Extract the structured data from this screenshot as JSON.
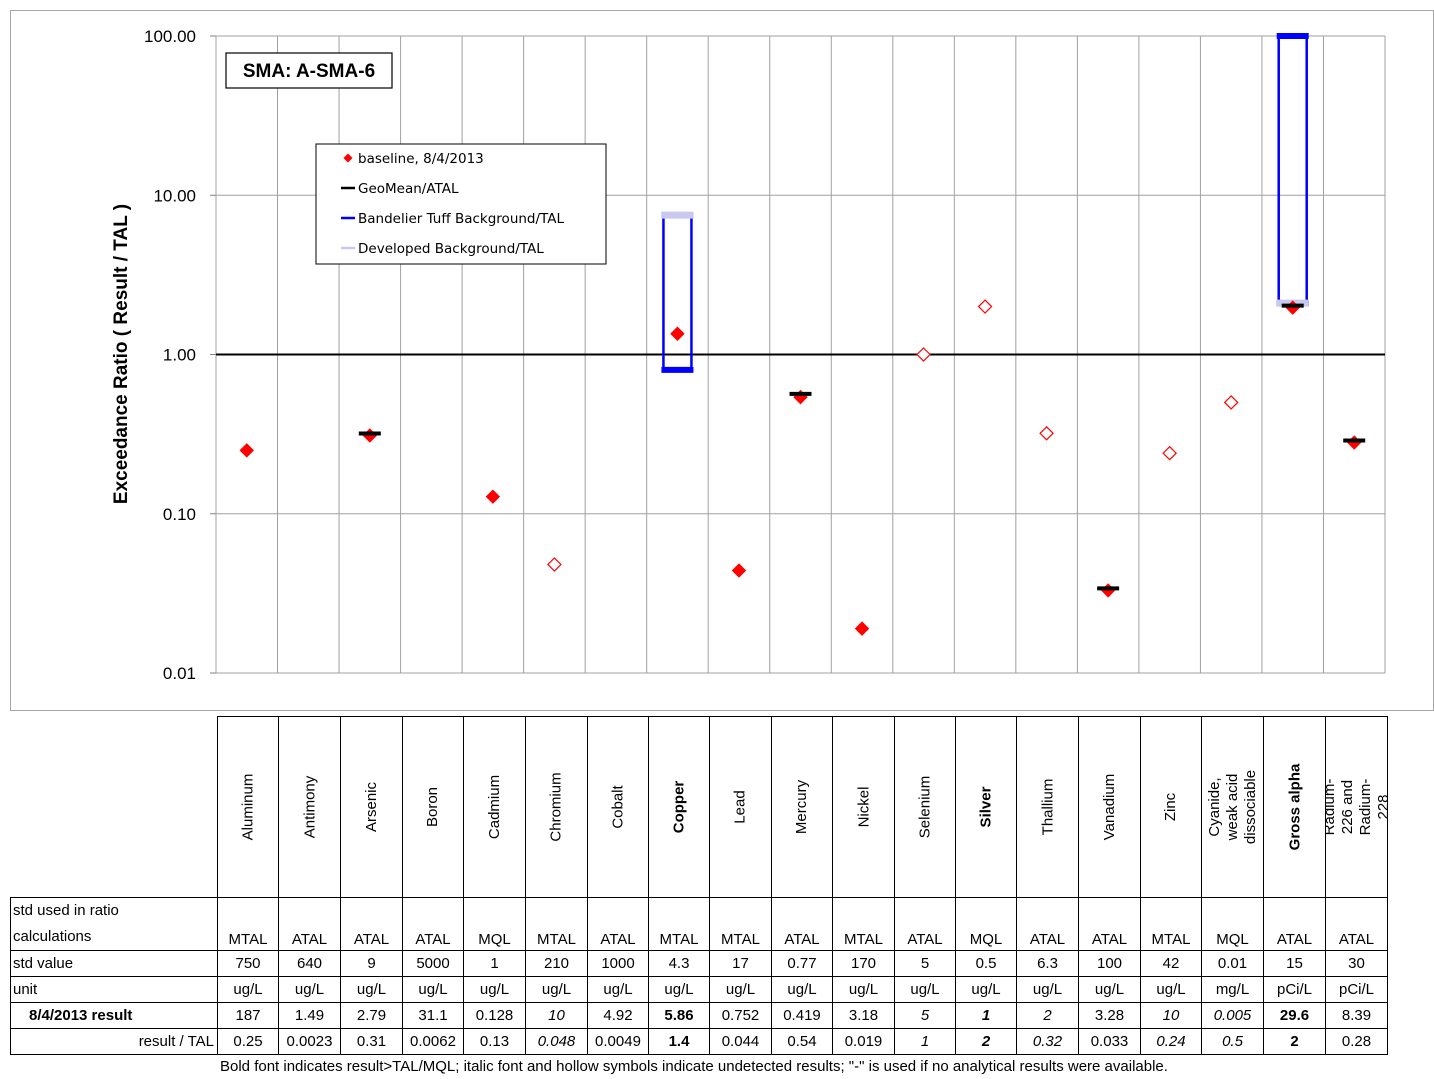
{
  "chart_data": {
    "type": "scatter",
    "yscale": "log",
    "ylim": [
      0.01,
      100
    ],
    "ylabel": "Exceedance Ratio  ( Result / TAL )",
    "yticks": [
      "100.00",
      "10.00",
      "1.00",
      "0.10",
      "0.01"
    ],
    "yticks_values": [
      100,
      10,
      1,
      0.1,
      0.01
    ],
    "reference_line": 1.0,
    "grid": true,
    "title_box": "SMA: A-SMA-6",
    "legend": {
      "placement": "upper-left",
      "entries": [
        {
          "label": "baseline, 8/4/2013",
          "color": "#ff0000",
          "marker": "diamond"
        },
        {
          "label": "GeoMean/ATAL",
          "color": "#000000",
          "marker": "line"
        },
        {
          "label": "Bandelier Tuff Background/TAL",
          "color": "#0000ff",
          "marker": "line"
        },
        {
          "label": "Developed Background/TAL",
          "color": "#c8c8f0",
          "marker": "line"
        }
      ]
    },
    "categories": [
      "Aluminum",
      "Antimony",
      "Arsenic",
      "Boron",
      "Cadmium",
      "Chromium",
      "Cobalt",
      "Copper",
      "Lead",
      "Mercury",
      "Nickel",
      "Selenium",
      "Silver",
      "Thallium",
      "Vanadium",
      "Zinc",
      "Cyanide, weak acid dissociable",
      "Gross alpha",
      "Radium-226 and Radium-228"
    ],
    "series": [
      {
        "name": "baseline, 8/4/2013",
        "values": [
          0.25,
          null,
          0.31,
          null,
          0.128,
          0.048,
          null,
          1.35,
          0.044,
          0.54,
          0.019,
          1.0,
          2.0,
          0.32,
          0.033,
          0.24,
          0.5,
          1.97,
          0.28
        ],
        "detected": [
          true,
          true,
          true,
          true,
          true,
          false,
          true,
          true,
          true,
          true,
          true,
          false,
          false,
          false,
          true,
          false,
          false,
          true,
          true
        ]
      },
      {
        "name": "GeoMean/ATAL",
        "values": [
          null,
          null,
          0.31,
          null,
          null,
          null,
          null,
          null,
          null,
          0.55,
          null,
          null,
          null,
          null,
          0.033,
          null,
          null,
          1.97,
          0.28
        ]
      },
      {
        "name": "Bandelier Tuff Background/TAL",
        "ranges": [
          {
            "category": "Copper",
            "low": 0.8,
            "high": 7.5
          },
          {
            "category": "Gross alpha",
            "low": 2.1,
            "high": 100
          }
        ]
      },
      {
        "name": "Developed Background/TAL",
        "values": [
          null,
          null,
          null,
          null,
          null,
          null,
          null,
          7.5,
          null,
          null,
          null,
          null,
          null,
          null,
          null,
          null,
          null,
          2.1,
          null
        ]
      }
    ]
  },
  "table": {
    "columns": [
      {
        "name": "Aluminum",
        "bold": false,
        "std_used": "MTAL",
        "std_value": "750",
        "unit": "ug/L",
        "result": "187",
        "ratio": "0.25",
        "italic": false
      },
      {
        "name": "Antimony",
        "bold": false,
        "std_used": "ATAL",
        "std_value": "640",
        "unit": "ug/L",
        "result": "1.49",
        "ratio": "0.0023",
        "italic": false
      },
      {
        "name": "Arsenic",
        "bold": false,
        "std_used": "ATAL",
        "std_value": "9",
        "unit": "ug/L",
        "result": "2.79",
        "ratio": "0.31",
        "italic": false
      },
      {
        "name": "Boron",
        "bold": false,
        "std_used": "ATAL",
        "std_value": "5000",
        "unit": "ug/L",
        "result": "31.1",
        "ratio": "0.0062",
        "italic": false
      },
      {
        "name": "Cadmium",
        "bold": false,
        "std_used": "MQL",
        "std_value": "1",
        "unit": "ug/L",
        "result": "0.128",
        "ratio": "0.13",
        "italic": false
      },
      {
        "name": "Chromium",
        "bold": false,
        "std_used": "MTAL",
        "std_value": "210",
        "unit": "ug/L",
        "result": "10",
        "ratio": "0.048",
        "italic": true
      },
      {
        "name": "Cobalt",
        "bold": false,
        "std_used": "ATAL",
        "std_value": "1000",
        "unit": "ug/L",
        "result": "4.92",
        "ratio": "0.0049",
        "italic": false
      },
      {
        "name": "Copper",
        "bold": true,
        "std_used": "MTAL",
        "std_value": "4.3",
        "unit": "ug/L",
        "result": "5.86",
        "ratio": "1.4",
        "italic": false
      },
      {
        "name": "Lead",
        "bold": false,
        "std_used": "MTAL",
        "std_value": "17",
        "unit": "ug/L",
        "result": "0.752",
        "ratio": "0.044",
        "italic": false
      },
      {
        "name": "Mercury",
        "bold": false,
        "std_used": "ATAL",
        "std_value": "0.77",
        "unit": "ug/L",
        "result": "0.419",
        "ratio": "0.54",
        "italic": false
      },
      {
        "name": "Nickel",
        "bold": false,
        "std_used": "MTAL",
        "std_value": "170",
        "unit": "ug/L",
        "result": "3.18",
        "ratio": "0.019",
        "italic": false
      },
      {
        "name": "Selenium",
        "bold": false,
        "std_used": "ATAL",
        "std_value": "5",
        "unit": "ug/L",
        "result": "5",
        "ratio": "1",
        "italic": true
      },
      {
        "name": "Silver",
        "bold": true,
        "std_used": "MQL",
        "std_value": "0.5",
        "unit": "ug/L",
        "result": "1",
        "ratio": "2",
        "italic": true
      },
      {
        "name": "Thallium",
        "bold": false,
        "std_used": "ATAL",
        "std_value": "6.3",
        "unit": "ug/L",
        "result": "2",
        "ratio": "0.32",
        "italic": true
      },
      {
        "name": "Vanadium",
        "bold": false,
        "std_used": "ATAL",
        "std_value": "100",
        "unit": "ug/L",
        "result": "3.28",
        "ratio": "0.033",
        "italic": false
      },
      {
        "name": "Zinc",
        "bold": false,
        "std_used": "MTAL",
        "std_value": "42",
        "unit": "ug/L",
        "result": "10",
        "ratio": "0.24",
        "italic": true
      },
      {
        "name": "Cyanide, weak acid dissociable",
        "bold": false,
        "std_used": "MQL",
        "std_value": "0.01",
        "unit": "mg/L",
        "result": "0.005",
        "ratio": "0.5",
        "italic": true
      },
      {
        "name": "Gross alpha",
        "bold": true,
        "std_used": "ATAL",
        "std_value": "15",
        "unit": "pCi/L",
        "result": "29.6",
        "ratio": "2",
        "italic": false
      },
      {
        "name": "Radium-226 and Radium-228",
        "bold": false,
        "std_used": "ATAL",
        "std_value": "30",
        "unit": "pCi/L",
        "result": "8.39",
        "ratio": "0.28",
        "italic": false
      }
    ],
    "row_labels": {
      "std_used_line1": "std used in ratio",
      "std_used_line2": "calculations",
      "std_value": "std value",
      "unit": "unit",
      "result": "8/4/2013 result",
      "ratio": "result / TAL"
    }
  },
  "footnote": "Bold font indicates result>TAL/MQL;  italic font and hollow symbols indicate undetected results;  \"-\" is used if no analytical results were available."
}
